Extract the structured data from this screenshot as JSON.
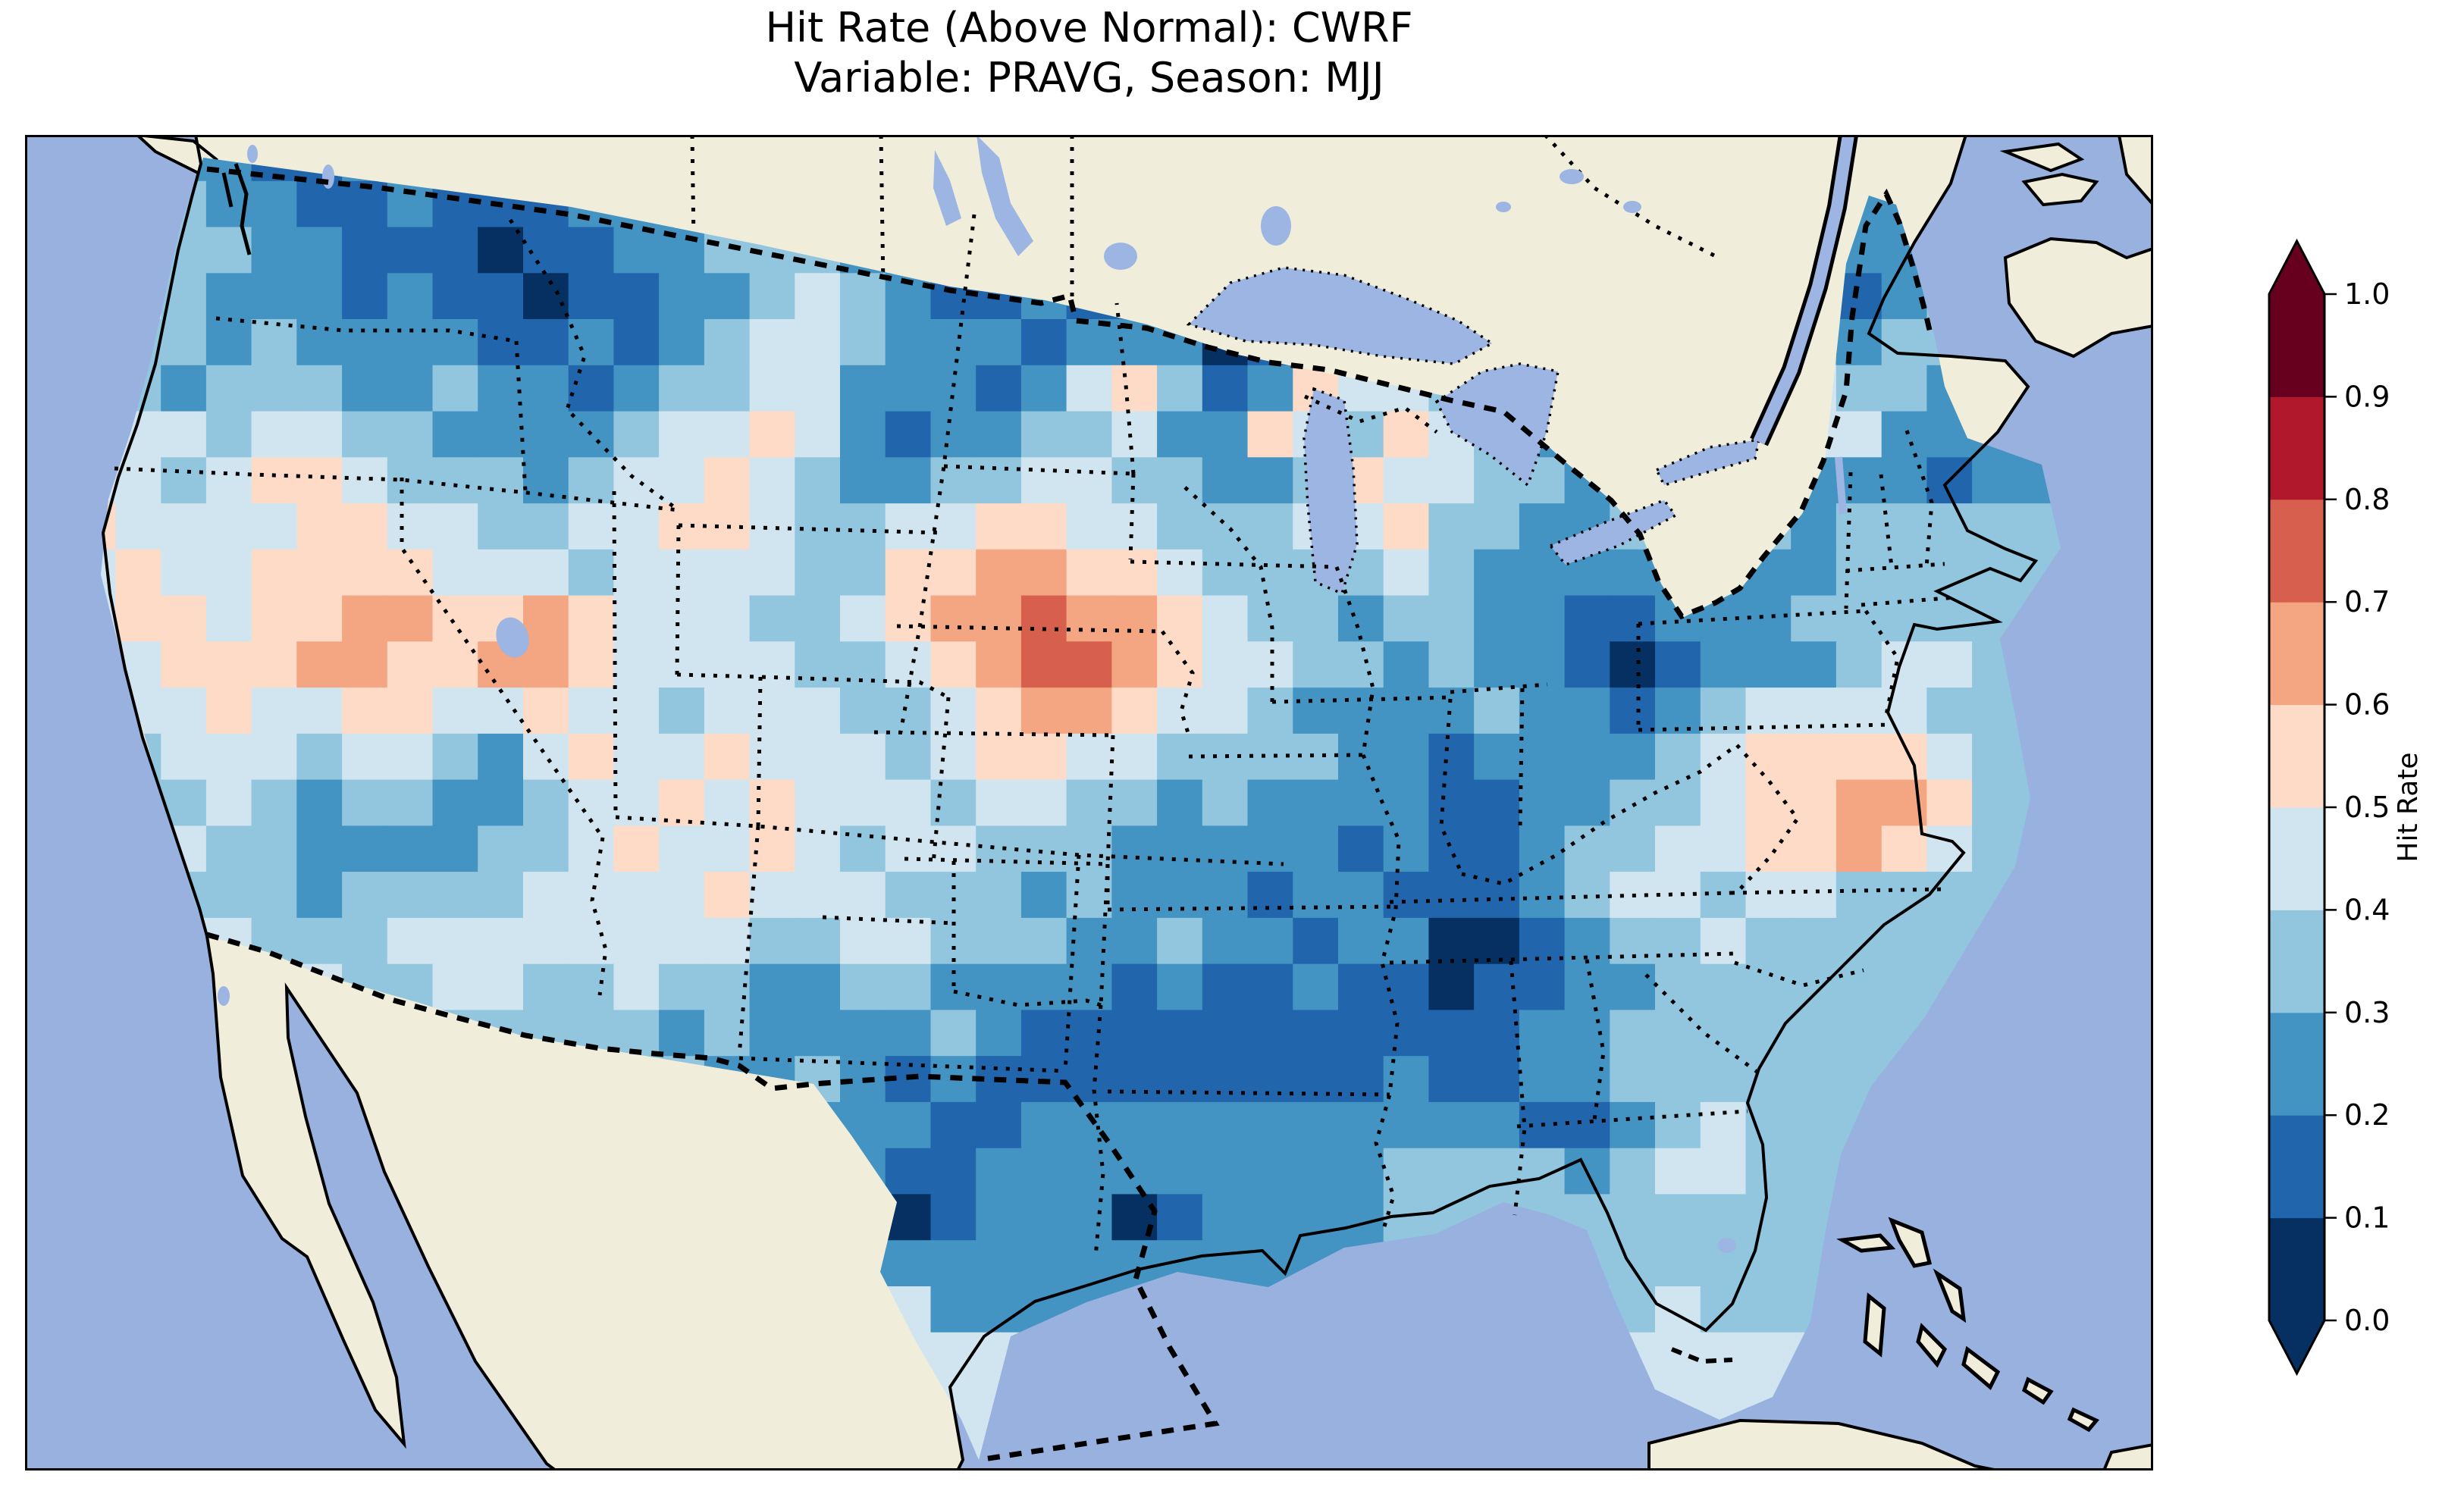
{
  "figure": {
    "title_line1": "Hit Rate (Above Normal): CWRF",
    "title_line2": "Variable: PRAVG, Season: MJJ"
  },
  "colorbar": {
    "label": "Hit Rate",
    "ticks": [
      "1.0",
      "0.9",
      "0.8",
      "0.7",
      "0.6",
      "0.5",
      "0.4",
      "0.3",
      "0.2",
      "0.1",
      "0.0"
    ],
    "extend": "both",
    "over_color": "#67001f",
    "under_color": "#053061"
  },
  "map": {
    "ocean_color": "#98b1df",
    "land_color": "#f0eeda",
    "lake_color": "#9db5e2",
    "coastline_color": "#000000",
    "national_border_style": "dashed",
    "state_border_style": "dotted"
  },
  "chart_data": {
    "type": "heatmap",
    "title": "Hit Rate (Above Normal): CWRF",
    "subtitle": "Variable: PRAVG, Season: MJJ",
    "model": "CWRF",
    "variable": "PRAVG",
    "season": "MJJ",
    "colorbar_label": "Hit Rate",
    "value_range": [
      0.0,
      1.0
    ],
    "bin_edges": [
      0.0,
      0.1,
      0.2,
      0.3,
      0.4,
      0.5,
      0.6,
      0.7,
      0.8,
      0.9,
      1.0
    ],
    "bin_colors": [
      "#053061",
      "#2166ac",
      "#4393c3",
      "#92c5de",
      "#d1e5f0",
      "#fddbc7",
      "#f4a582",
      "#d6604d",
      "#b2182b",
      "#67001f"
    ],
    "legend_position": "right",
    "region": "Contiguous United States",
    "grid": {
      "ncols": 47,
      "nrows": 29,
      "cell_values_bin_index_rows": [
        "22222112321122222222112121122222222222222222222",
        "22232211211122223322122111122222222222222222222",
        "33333221110112233322012211122222222222222212222",
        "33432221211011223432112111112222222222211232222",
        "34332322221121234432221222012232222222132332222",
        "43323332232212334422212453125443223232143322222",
        "43443443322223445421223342254354322332244222222",
        "54434554333234454322334433223544332223222212222",
        "45444455443344554334455443334453322322323333333",
        "34544555544434444335566554333343222222223333333",
        "34554556655654443345667665433233221122233333333",
        "34455566556654444334567765443323221012223443333",
        "33445445544544344433456654432222322123444433333",
        "33344434432454454443455443333221222234555543333",
        "33334323322344545444344332322221122334556653333",
        "33443322223345445434433322222121123344556543333",
        "44433323333444454443332322212211123443443333333",
        "44444333444444443344333223221220012334333333333",
        "44444443344334332233222212112110112233333333333",
        "44444433233333232222321111111111122333333333333",
        "44444433333433322321211111111121122333333333333",
        "44444444444444332222112222222222211234333333333",
        "44444444444444443221122222222233332344333333333",
        "44444444444444444220122201222233333333333333333",
        "44444444444444444422222222222233333333333333333",
        "44444444444444444444222222222233334343333333333",
        "44444444444444444444444444444444444444444444444",
        "44444444444444444444444444444444444444444444444",
        "44444444444444444444444444444444444444444444444"
      ]
    }
  }
}
